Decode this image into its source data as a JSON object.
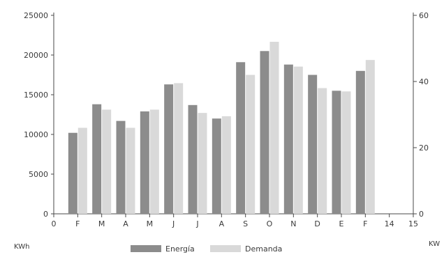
{
  "chart_data": {
    "type": "bar",
    "categories": [
      "F",
      "M",
      "A",
      "M",
      "J",
      "J",
      "A",
      "S",
      "O",
      "N",
      "D",
      "E",
      "F"
    ],
    "x_ticks": [
      "0",
      "F",
      "M",
      "A",
      "M",
      "J",
      "J",
      "A",
      "S",
      "O",
      "N",
      "D",
      "E",
      "F",
      "14",
      "15"
    ],
    "series": [
      {
        "name": "Energía",
        "axis": "left",
        "color": "#8c8c8c",
        "values": [
          10200,
          13800,
          11700,
          12900,
          16300,
          13700,
          12000,
          19100,
          20500,
          18800,
          17500,
          15500,
          18000
        ]
      },
      {
        "name": "Demanda",
        "axis": "right",
        "color": "#d9d9d9",
        "values": [
          26,
          31.5,
          26,
          31.5,
          39.5,
          30.5,
          29.5,
          42,
          52,
          44.5,
          38,
          37,
          46.5
        ]
      }
    ],
    "y_left": {
      "label": "KWh",
      "lim": [
        0,
        25000
      ],
      "ticks": [
        "0",
        "5000",
        "10000",
        "15000",
        "20000",
        "25000"
      ]
    },
    "y_right": {
      "label": "KW",
      "lim": [
        0,
        60
      ],
      "ticks": [
        "0",
        "20",
        "40",
        "60"
      ]
    },
    "legend": {
      "placement": "bottom-center",
      "entries": [
        "Energía",
        "Demanda"
      ]
    },
    "grid": false
  }
}
